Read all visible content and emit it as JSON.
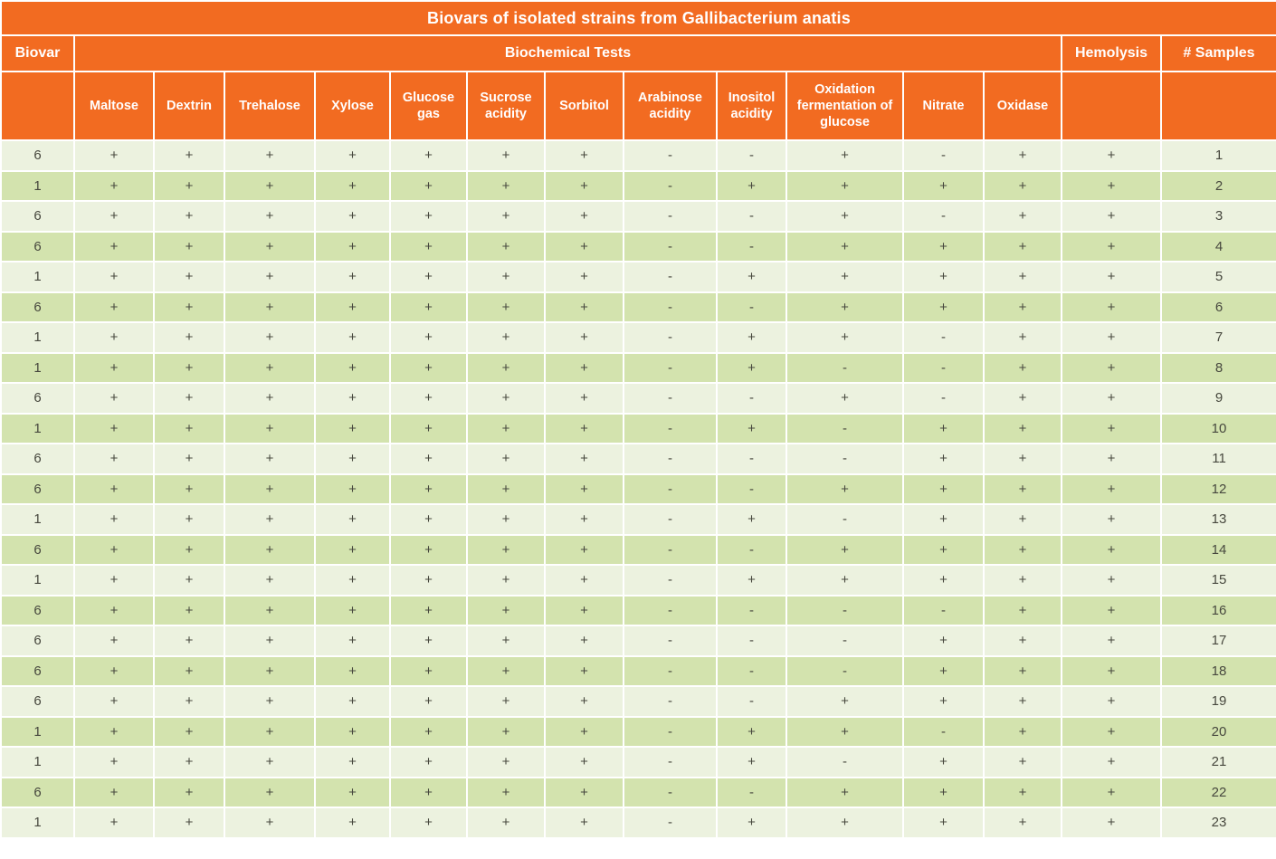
{
  "title": "Biovars of isolated strains from Gallibacterium anatis",
  "header": {
    "biovar": "Biovar",
    "biochemical_tests": "Biochemical Tests",
    "hemolysis": "Hemolysis",
    "samples": "# Samples",
    "tests": [
      "Maltose",
      "Dextrin",
      "Trehalose",
      "Xylose",
      "Glucose gas",
      "Sucrose acidity",
      "Sorbitol",
      "Arabinose acidity",
      "Inositol acidity",
      "Oxidation fermentation of glucose",
      "Nitrate",
      "Oxidase"
    ]
  },
  "colors": {
    "header_orange": "#F26B21",
    "row_light": "#ECF2DF",
    "row_dark": "#D3E3AE",
    "cell_text": "#47483E"
  },
  "chart_data": {
    "type": "table",
    "title": "Biovars of isolated strains from Gallibacterium anatis",
    "columns": [
      "Biovar",
      "Maltose",
      "Dextrin",
      "Trehalose",
      "Xylose",
      "Glucose gas",
      "Sucrose acidity",
      "Sorbitol",
      "Arabinose acidity",
      "Inositol acidity",
      "Oxidation fermentation of glucose",
      "Nitrate",
      "Oxidase",
      "Hemolysis",
      "# Samples"
    ],
    "rows": [
      [
        "6",
        "+",
        "+",
        "+",
        "+",
        "+",
        "+",
        "+",
        "-",
        "-",
        "+",
        "-",
        "+",
        "+",
        "1"
      ],
      [
        "1",
        "+",
        "+",
        "+",
        "+",
        "+",
        "+",
        "+",
        "-",
        "+",
        "+",
        "+",
        "+",
        "+",
        "2"
      ],
      [
        "6",
        "+",
        "+",
        "+",
        "+",
        "+",
        "+",
        "+",
        "-",
        "-",
        "+",
        "-",
        "+",
        "+",
        "3"
      ],
      [
        "6",
        "+",
        "+",
        "+",
        "+",
        "+",
        "+",
        "+",
        "-",
        "-",
        "+",
        "+",
        "+",
        "+",
        "4"
      ],
      [
        "1",
        "+",
        "+",
        "+",
        "+",
        "+",
        "+",
        "+",
        "-",
        "+",
        "+",
        "+",
        "+",
        "+",
        "5"
      ],
      [
        "6",
        "+",
        "+",
        "+",
        "+",
        "+",
        "+",
        "+",
        "-",
        "-",
        "+",
        "+",
        "+",
        "+",
        "6"
      ],
      [
        "1",
        "+",
        "+",
        "+",
        "+",
        "+",
        "+",
        "+",
        "-",
        "+",
        "+",
        "-",
        "+",
        "+",
        "7"
      ],
      [
        "1",
        "+",
        "+",
        "+",
        "+",
        "+",
        "+",
        "+",
        "-",
        "+",
        "-",
        "-",
        "+",
        "+",
        "8"
      ],
      [
        "6",
        "+",
        "+",
        "+",
        "+",
        "+",
        "+",
        "+",
        "-",
        "-",
        "+",
        "-",
        "+",
        "+",
        "9"
      ],
      [
        "1",
        "+",
        "+",
        "+",
        "+",
        "+",
        "+",
        "+",
        "-",
        "+",
        "-",
        "+",
        "+",
        "+",
        "10"
      ],
      [
        "6",
        "+",
        "+",
        "+",
        "+",
        "+",
        "+",
        "+",
        "-",
        "-",
        "-",
        "+",
        "+",
        "+",
        "11"
      ],
      [
        "6",
        "+",
        "+",
        "+",
        "+",
        "+",
        "+",
        "+",
        "-",
        "-",
        "+",
        "+",
        "+",
        "+",
        "12"
      ],
      [
        "1",
        "+",
        "+",
        "+",
        "+",
        "+",
        "+",
        "+",
        "-",
        "+",
        "-",
        "+",
        "+",
        "+",
        "13"
      ],
      [
        "6",
        "+",
        "+",
        "+",
        "+",
        "+",
        "+",
        "+",
        "-",
        "-",
        "+",
        "+",
        "+",
        "+",
        "14"
      ],
      [
        "1",
        "+",
        "+",
        "+",
        "+",
        "+",
        "+",
        "+",
        "-",
        "+",
        "+",
        "+",
        "+",
        "+",
        "15"
      ],
      [
        "6",
        "+",
        "+",
        "+",
        "+",
        "+",
        "+",
        "+",
        "-",
        "-",
        "-",
        "-",
        "+",
        "+",
        "16"
      ],
      [
        "6",
        "+",
        "+",
        "+",
        "+",
        "+",
        "+",
        "+",
        "-",
        "-",
        "-",
        "+",
        "+",
        "+",
        "17"
      ],
      [
        "6",
        "+",
        "+",
        "+",
        "+",
        "+",
        "+",
        "+",
        "-",
        "-",
        "-",
        "+",
        "+",
        "+",
        "18"
      ],
      [
        "6",
        "+",
        "+",
        "+",
        "+",
        "+",
        "+",
        "+",
        "-",
        "-",
        "+",
        "+",
        "+",
        "+",
        "19"
      ],
      [
        "1",
        "+",
        "+",
        "+",
        "+",
        "+",
        "+",
        "+",
        "-",
        "+",
        "+",
        "-",
        "+",
        "+",
        "20"
      ],
      [
        "1",
        "+",
        "+",
        "+",
        "+",
        "+",
        "+",
        "+",
        "-",
        "+",
        "-",
        "+",
        "+",
        "+",
        "21"
      ],
      [
        "6",
        "+",
        "+",
        "+",
        "+",
        "+",
        "+",
        "+",
        "-",
        "-",
        "+",
        "+",
        "+",
        "+",
        "22"
      ],
      [
        "1",
        "+",
        "+",
        "+",
        "+",
        "+",
        "+",
        "+",
        "-",
        "+",
        "+",
        "+",
        "+",
        "+",
        "23"
      ]
    ]
  }
}
